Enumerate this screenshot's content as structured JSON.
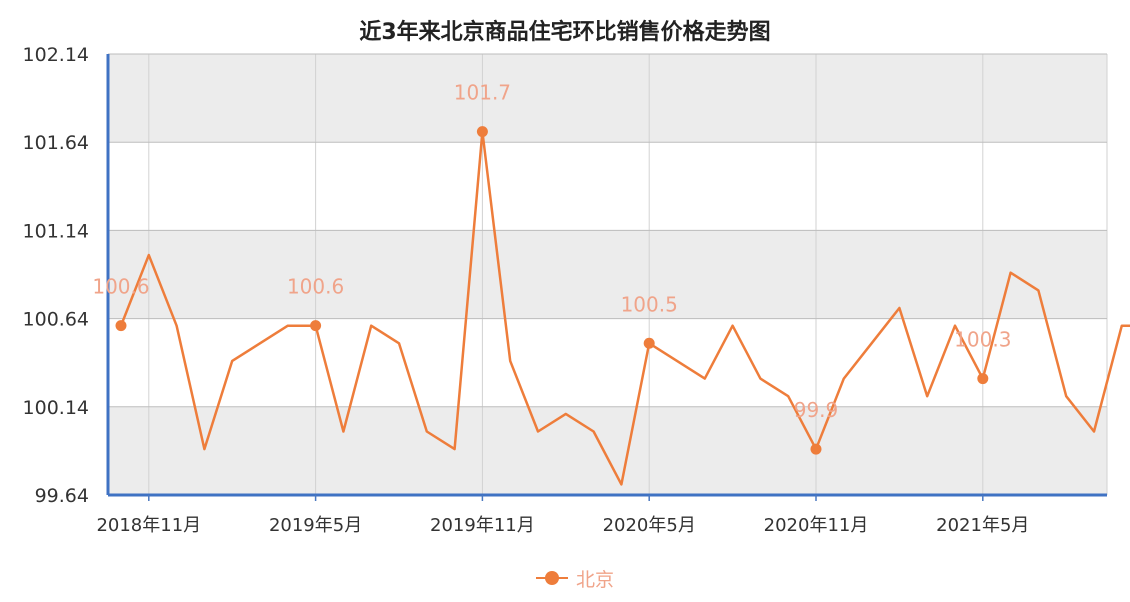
{
  "chart_data": {
    "type": "line",
    "title": "近3年来北京商品住宅环比销售价格走势图",
    "xlabel": "",
    "ylabel": "",
    "ylim": [
      99.64,
      102.14
    ],
    "yticks": [
      "102.14",
      "101.64",
      "101.14",
      "100.64",
      "100.14",
      "99.64"
    ],
    "xtick_labels": [
      "2018年11月",
      "2019年5月",
      "2019年11月",
      "2020年5月",
      "2020年11月",
      "2021年5月"
    ],
    "x": [
      "2018-10",
      "2018-11",
      "2018-12",
      "2019-01",
      "2019-02",
      "2019-03",
      "2019-04",
      "2019-05",
      "2019-06",
      "2019-07",
      "2019-08",
      "2019-09",
      "2019-10",
      "2019-11",
      "2019-12",
      "2020-01",
      "2020-02",
      "2020-03",
      "2020-04",
      "2020-05",
      "2020-06",
      "2020-07",
      "2020-08",
      "2020-09",
      "2020-10",
      "2020-11",
      "2020-12",
      "2021-01",
      "2021-02",
      "2021-03",
      "2021-04",
      "2021-05",
      "2021-06",
      "2021-07",
      "2021-08",
      "2021-09",
      "2021-10",
      "2021-11"
    ],
    "series": [
      {
        "name": "北京",
        "color": "#ee7d3b",
        "values": [
          100.6,
          101.0,
          100.6,
          99.9,
          100.4,
          100.5,
          100.6,
          100.6,
          100.0,
          100.6,
          100.5,
          100.0,
          99.9,
          101.7,
          100.4,
          100.0,
          100.1,
          100.0,
          99.7,
          100.5,
          100.4,
          100.3,
          100.6,
          100.3,
          100.2,
          99.9,
          100.3,
          100.5,
          100.7,
          100.2,
          100.6,
          100.3,
          100.9,
          100.8,
          100.2,
          100.0,
          100.6,
          100.6
        ]
      }
    ],
    "annotations": [
      {
        "x": "2018-10",
        "label": "100.6"
      },
      {
        "x": "2019-05",
        "label": "100.6"
      },
      {
        "x": "2019-11",
        "label": "101.7"
      },
      {
        "x": "2020-05",
        "label": "100.5"
      },
      {
        "x": "2020-11",
        "label": "99.9"
      },
      {
        "x": "2021-05",
        "label": "100.3"
      }
    ],
    "grid": true,
    "legend_position": "bottom-center"
  }
}
